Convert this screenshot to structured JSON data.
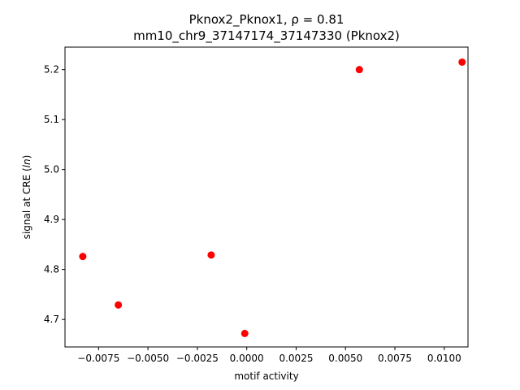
{
  "chart_data": {
    "type": "scatter",
    "title_line1": "Pknox2_Pknox1, ρ = 0.81",
    "title_line2": "mm10_chr9_37147174_37147330 (Pknox2)",
    "xlabel": "motif activity",
    "ylabel": "signal at CRE (ln)",
    "xlim": [
      -0.0092,
      0.0112
    ],
    "ylim": [
      4.645,
      5.245
    ],
    "xticks": [
      -0.0075,
      -0.005,
      -0.0025,
      0.0,
      0.0025,
      0.005,
      0.0075,
      0.01
    ],
    "xtick_labels": [
      "−0.0075",
      "−0.0050",
      "−0.0025",
      "0.0000",
      "0.0025",
      "0.0050",
      "0.0075",
      "0.0100"
    ],
    "yticks": [
      4.7,
      4.8,
      4.9,
      5.0,
      5.1,
      5.2
    ],
    "ytick_labels": [
      "4.7",
      "4.8",
      "4.9",
      "5.0",
      "5.1",
      "5.2"
    ],
    "marker_color": "#ff0000",
    "grid": false,
    "points": [
      {
        "x": -0.0083,
        "y": 4.826
      },
      {
        "x": -0.0065,
        "y": 4.729
      },
      {
        "x": -0.0018,
        "y": 4.829
      },
      {
        "x": -0.0001,
        "y": 4.672
      },
      {
        "x": 0.0057,
        "y": 5.2
      },
      {
        "x": 0.0109,
        "y": 5.215
      }
    ]
  }
}
